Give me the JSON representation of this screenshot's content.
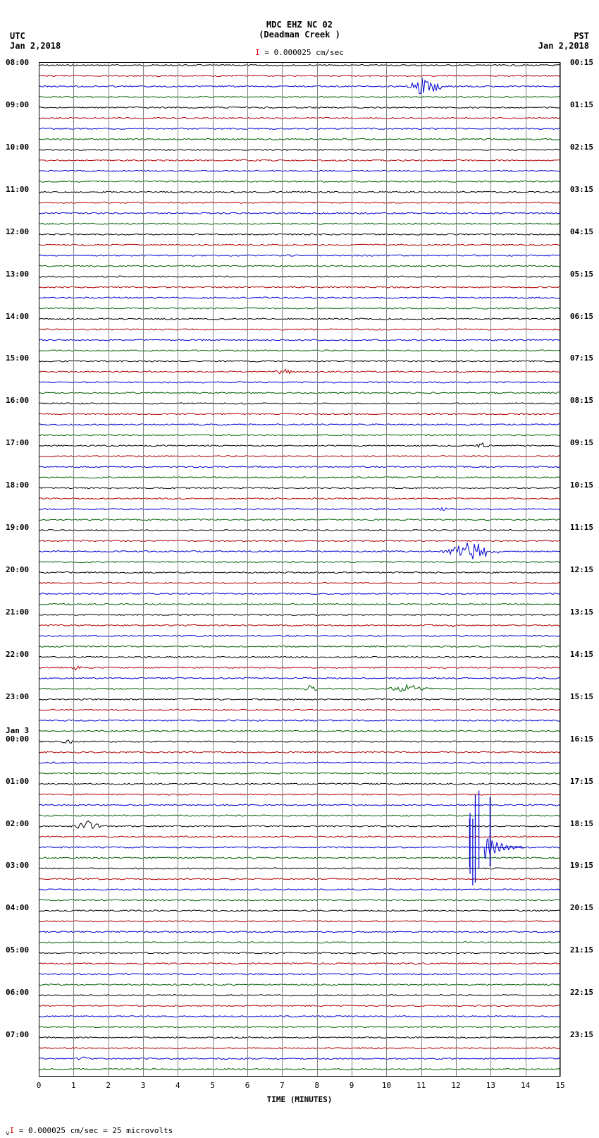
{
  "header": {
    "station": "MDC EHZ NC 02",
    "location": "(Deadman Creek )",
    "left_tz": "UTC",
    "left_date": "Jan 2,2018",
    "right_tz": "PST",
    "right_date": "Jan 2,2018",
    "scale_value": "= 0.000025 cm/sec"
  },
  "plot": {
    "type": "seismogram",
    "background_color": "#ffffff",
    "grid_color": "#808080",
    "border_color": "#000000",
    "x_ticks": [
      0,
      1,
      2,
      3,
      4,
      5,
      6,
      7,
      8,
      9,
      10,
      11,
      12,
      13,
      14,
      15
    ],
    "x_title": "TIME (MINUTES)",
    "trace_colors": [
      "#000000",
      "#b00000",
      "#0000d0",
      "#006000"
    ],
    "left_hours": [
      "08:00",
      "09:00",
      "10:00",
      "11:00",
      "12:00",
      "13:00",
      "14:00",
      "15:00",
      "16:00",
      "17:00",
      "18:00",
      "19:00",
      "20:00",
      "21:00",
      "22:00",
      "23:00",
      "00:00",
      "01:00",
      "02:00",
      "03:00",
      "04:00",
      "05:00",
      "06:00",
      "07:00"
    ],
    "right_hours": [
      "00:15",
      "01:15",
      "02:15",
      "03:15",
      "04:15",
      "05:15",
      "06:15",
      "07:15",
      "08:15",
      "09:15",
      "10:15",
      "11:15",
      "12:15",
      "13:15",
      "14:15",
      "15:15",
      "16:15",
      "17:15",
      "18:15",
      "19:15",
      "20:15",
      "21:15",
      "22:15",
      "23:15"
    ],
    "next_day_label": "Jan 3",
    "next_day_index": 16,
    "traces_per_hour": 4,
    "events": [
      {
        "trace": 2,
        "x": 0.74,
        "amplitude": 14,
        "width": 0.04,
        "type": "burst"
      },
      {
        "trace": 29,
        "x": 0.47,
        "amplitude": 5,
        "width": 0.02,
        "type": "burst"
      },
      {
        "trace": 36,
        "x": 0.85,
        "amplitude": 4,
        "width": 0.02,
        "type": "spike"
      },
      {
        "trace": 42,
        "x": 0.77,
        "amplitude": 4,
        "width": 0.02,
        "type": "burst"
      },
      {
        "trace": 46,
        "x": 0.83,
        "amplitude": 14,
        "width": 0.06,
        "type": "burst"
      },
      {
        "trace": 53,
        "x": 0.795,
        "amplitude": 3,
        "width": 0.015,
        "type": "spike"
      },
      {
        "trace": 57,
        "x": 0.07,
        "amplitude": 4,
        "width": 0.015,
        "type": "burst"
      },
      {
        "trace": 59,
        "x": 0.52,
        "amplitude": 4,
        "width": 0.02,
        "type": "burst"
      },
      {
        "trace": 59,
        "x": 0.71,
        "amplitude": 6,
        "width": 0.05,
        "type": "burst"
      },
      {
        "trace": 64,
        "x": 0.055,
        "amplitude": 3,
        "width": 0.02,
        "type": "burst"
      },
      {
        "trace": 72,
        "x": 0.1,
        "amplitude": 8,
        "width": 0.04,
        "type": "burst"
      },
      {
        "trace": 74,
        "x": 0.845,
        "amplitude": 60,
        "width": 0.03,
        "type": "large_spike"
      },
      {
        "trace": 94,
        "x": 0.08,
        "amplitude": 4,
        "width": 0.015,
        "type": "burst"
      }
    ]
  },
  "footer": {
    "text": "= 0.000025 cm/sec =    25 microvolts"
  }
}
